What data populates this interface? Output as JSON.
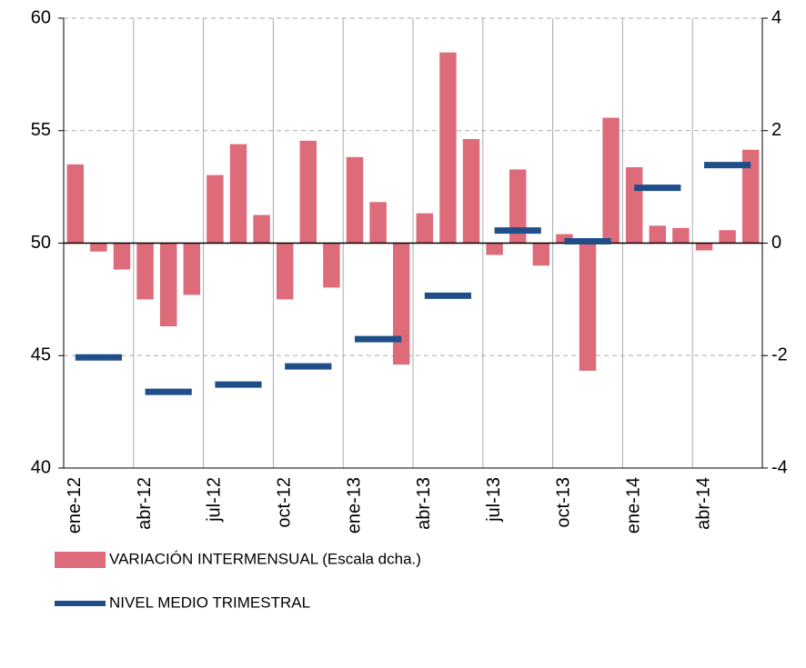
{
  "chart_data": {
    "type": "bar",
    "categories": [
      "ene-12",
      null,
      null,
      "abr-12",
      null,
      null,
      "jul-12",
      null,
      null,
      "oct-12",
      null,
      null,
      "ene-13",
      null,
      null,
      "abr-13",
      null,
      null,
      "jul-13",
      null,
      null,
      "oct-13",
      null,
      null,
      "ene-14",
      null,
      null,
      "abr-14",
      null,
      null
    ],
    "series": [
      {
        "name": "VARIACIÓN INTERMENSUAL (Escala dcha.)",
        "color": "#dd6b79",
        "axis": "y2",
        "values": [
          1.4,
          -0.15,
          -0.47,
          -1.0,
          -1.48,
          -0.92,
          1.21,
          1.76,
          0.5,
          -1.0,
          1.82,
          -0.79,
          1.53,
          0.73,
          -2.16,
          0.53,
          3.39,
          1.85,
          -0.21,
          1.31,
          -0.4,
          0.16,
          -2.27,
          2.23,
          1.35,
          0.31,
          0.27,
          -0.13,
          0.23,
          1.66
        ]
      },
      {
        "name": "NIVEL MEDIO TRIMESTRAL",
        "color": "#1f4e89",
        "axis": "y",
        "values": [
          null,
          44.92,
          null,
          null,
          43.39,
          null,
          null,
          43.71,
          null,
          null,
          44.52,
          null,
          null,
          45.73,
          null,
          null,
          47.66,
          null,
          null,
          50.56,
          null,
          null,
          50.08,
          null,
          null,
          52.46,
          null,
          null,
          53.47,
          null
        ]
      }
    ],
    "ylim": [
      40,
      60
    ],
    "yticks": [
      40,
      45,
      50,
      55,
      60
    ],
    "y2lim": [
      -4,
      4
    ],
    "y2ticks": [
      -4,
      -2,
      0,
      2,
      4
    ],
    "grid": true,
    "legend": "bottom"
  }
}
